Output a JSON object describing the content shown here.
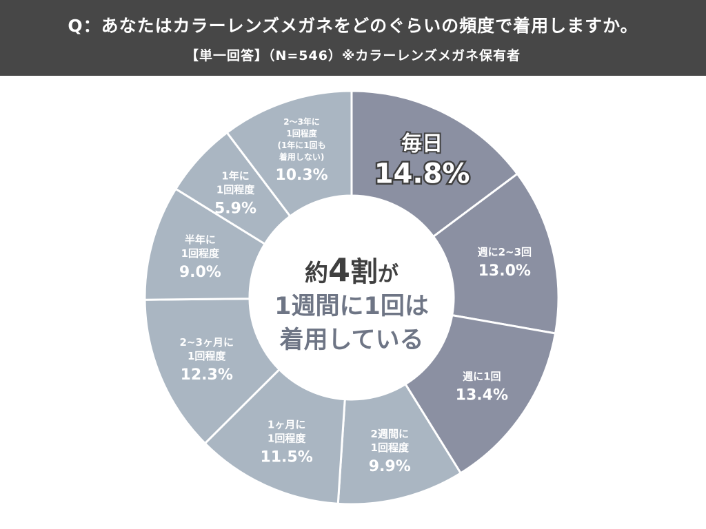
{
  "header": {
    "question": "Q：あなたはカラーレンズメガネをどのぐらいの頻度で着用しますか。",
    "subtitle": "【単一回答】（N=546）※カラーレンズメガネ保有者"
  },
  "center": {
    "line1_prefix": "約",
    "line1_number": "4",
    "line1_word": "割",
    "line1_suffix": "が",
    "line2": "1週間に1回は",
    "line3": "着用している"
  },
  "colors": {
    "header_bg": "#474747",
    "dark_segment": "#8b90a2",
    "light_segment": "#aab6c2",
    "center_accent": "#6e7585",
    "center_text": "#3f3f3f"
  },
  "chart_data": {
    "type": "pie",
    "donut": true,
    "slices": [
      {
        "label_lines": [
          "毎日"
        ],
        "value": 14.8,
        "value_text": "14.8%",
        "group": "dark"
      },
      {
        "label_lines": [
          "週に2~3回"
        ],
        "value": 13.0,
        "value_text": "13.0%",
        "group": "dark"
      },
      {
        "label_lines": [
          "週に1回"
        ],
        "value": 13.4,
        "value_text": "13.4%",
        "group": "dark"
      },
      {
        "label_lines": [
          "2週間に",
          "1回程度"
        ],
        "value": 9.9,
        "value_text": "9.9%",
        "group": "light"
      },
      {
        "label_lines": [
          "1ヶ月に",
          "1回程度"
        ],
        "value": 11.5,
        "value_text": "11.5%",
        "group": "light"
      },
      {
        "label_lines": [
          "2~3ヶ月に",
          "1回程度"
        ],
        "value": 12.3,
        "value_text": "12.3%",
        "group": "light"
      },
      {
        "label_lines": [
          "半年に",
          "1回程度"
        ],
        "value": 9.0,
        "value_text": "9.0%",
        "group": "light"
      },
      {
        "label_lines": [
          "1年に",
          "1回程度"
        ],
        "value": 5.9,
        "value_text": "5.9%",
        "group": "light"
      },
      {
        "label_lines": [
          "2～3年に",
          "1回程度",
          "(1年に1回も",
          "着用しない)"
        ],
        "value": 10.3,
        "value_text": "10.3%",
        "group": "light"
      }
    ]
  }
}
